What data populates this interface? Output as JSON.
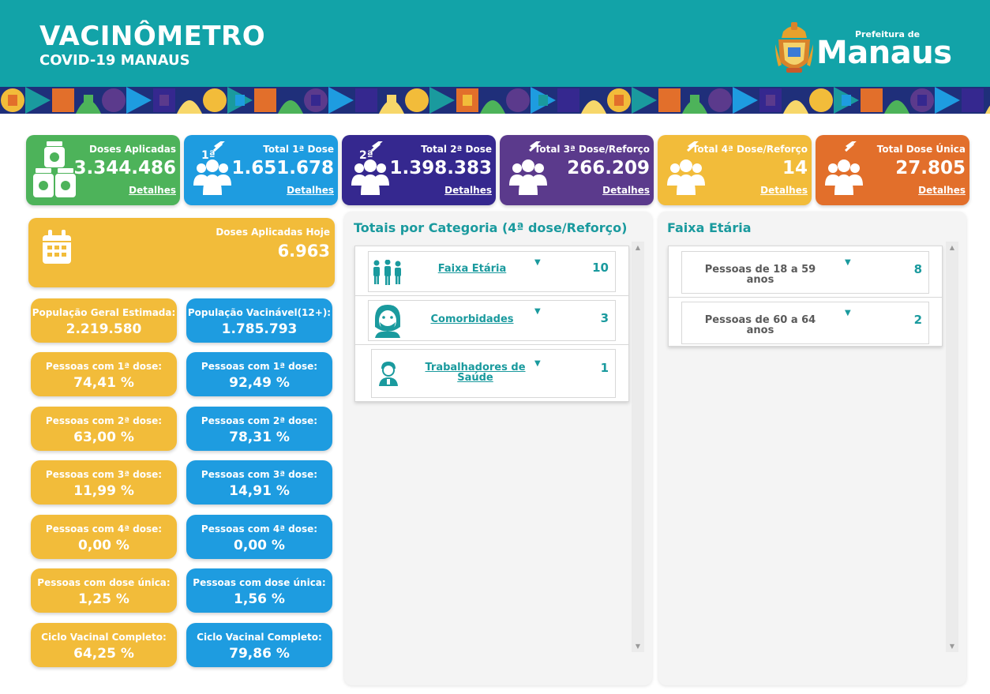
{
  "header": {
    "title": "VACINÔMETRO",
    "subtitle": "COVID-19 MANAUS",
    "brand_small": "Prefeitura de",
    "brand_big": "Manaus"
  },
  "kpis": [
    {
      "label": "Doses Aplicadas",
      "value": "3.344.486",
      "link": "Detalhes",
      "color": "#4db35a",
      "icon": "vaccine-vials-icon"
    },
    {
      "label": "Total 1ª Dose",
      "value": "1.651.678",
      "link": "Detalhes",
      "color": "#1e9ce0",
      "icon": "people-first-dose-icon",
      "badge": "1ª"
    },
    {
      "label": "Total 2ª Dose",
      "value": "1.398.383",
      "link": "Detalhes",
      "color": "#35288f",
      "icon": "people-second-dose-icon",
      "badge": "2ª"
    },
    {
      "label": "Total 3ª Dose/Reforço",
      "value": "266.209",
      "link": "Detalhes",
      "color": "#5b3a8c",
      "icon": "people-third-dose-icon"
    },
    {
      "label": "Total 4ª Dose/Reforço",
      "value": "14",
      "link": "Detalhes",
      "color": "#f2bc3a",
      "icon": "people-fourth-dose-icon"
    },
    {
      "label": "Total Dose Única",
      "value": "27.805",
      "link": "Detalhes",
      "color": "#e26f2b",
      "icon": "people-single-dose-icon"
    }
  ],
  "today": {
    "label": "Doses Aplicadas Hoje",
    "value": "6.963",
    "icon": "calendar-icon"
  },
  "stats_general": [
    {
      "label": "População Geral Estimada:",
      "value": "2.219.580"
    },
    {
      "label": "Pessoas com 1ª dose:",
      "value": "74,41 %"
    },
    {
      "label": "Pessoas com 2ª dose:",
      "value": "63,00 %"
    },
    {
      "label": "Pessoas com 3ª dose:",
      "value": "11,99 %"
    },
    {
      "label": "Pessoas com 4ª dose:",
      "value": "0,00 %"
    },
    {
      "label": "Pessoas com dose única:",
      "value": "1,25 %"
    },
    {
      "label": "Ciclo Vacinal Completo:",
      "value": "64,25 %"
    }
  ],
  "stats_vaccinable": [
    {
      "label": "População Vacinável(12+):",
      "value": "1.785.793"
    },
    {
      "label": "Pessoas com 1ª dose:",
      "value": "92,49 %"
    },
    {
      "label": "Pessoas com 2ª dose:",
      "value": "78,31 %"
    },
    {
      "label": "Pessoas com 3ª dose:",
      "value": "14,91 %"
    },
    {
      "label": "Pessoas com 4ª dose:",
      "value": "0,00 %"
    },
    {
      "label": "Pessoas com dose única:",
      "value": "1,56 %"
    },
    {
      "label": "Ciclo Vacinal Completo:",
      "value": "79,86 %"
    }
  ],
  "categories_panel": {
    "title": "Totais por Categoria (4ª dose/Reforço)",
    "rows": [
      {
        "label": "Faixa Etária",
        "count": "10",
        "icon": "family-icon"
      },
      {
        "label": "Comorbidades",
        "count": "3",
        "icon": "masked-person-icon"
      },
      {
        "label": "Trabalhadores de Saúde",
        "count": "1",
        "icon": "health-worker-icon"
      }
    ]
  },
  "age_panel": {
    "title": "Faixa Etária",
    "rows": [
      {
        "label": "Pessoas de 18 a 59 anos",
        "count": "8"
      },
      {
        "label": "Pessoas de 60 a 64 anos",
        "count": "2"
      }
    ]
  }
}
